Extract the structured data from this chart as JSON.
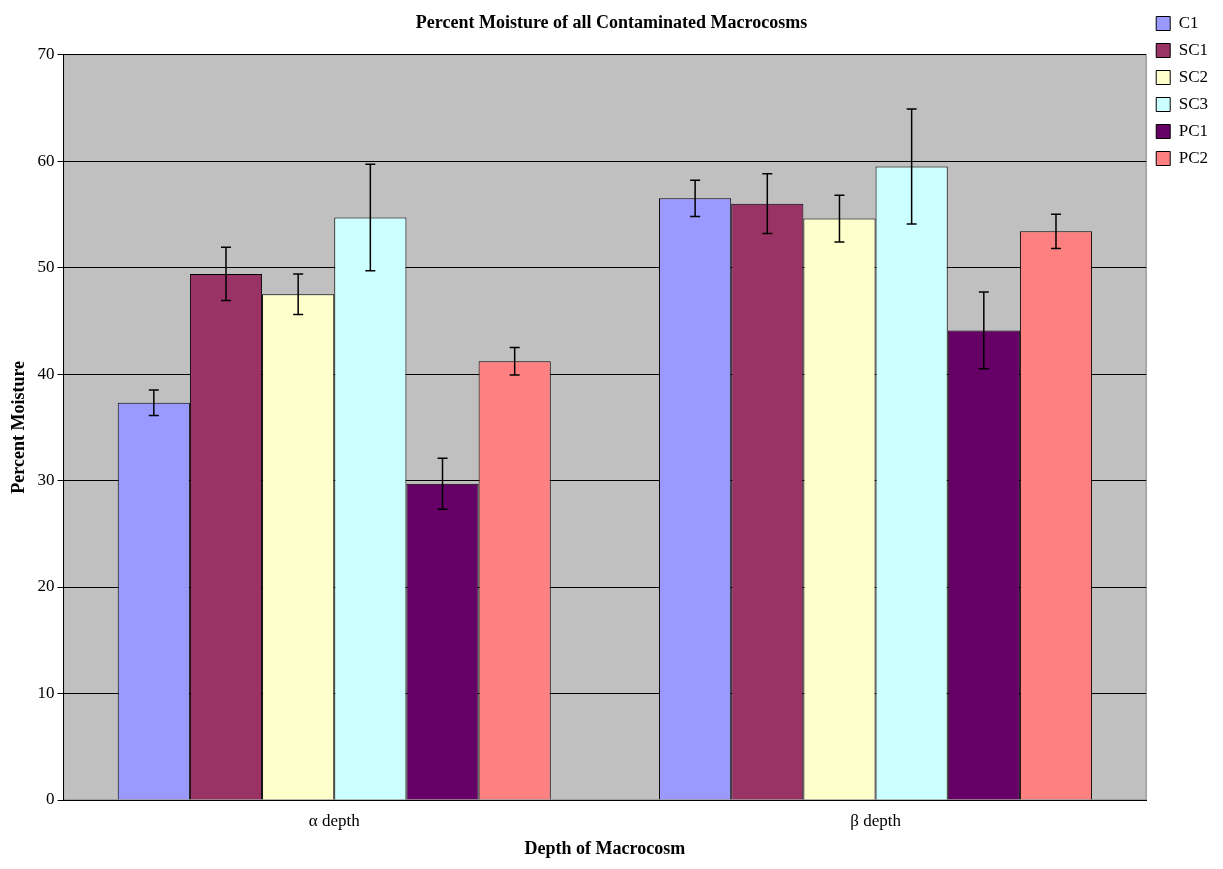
{
  "chart_data": {
    "type": "bar",
    "title": "Percent Moisture of all Contaminated Macrocosms",
    "xlabel": "Depth of Macrocosm",
    "ylabel": "Percent Moisture",
    "categories": [
      "α depth",
      "β depth"
    ],
    "series": [
      {
        "name": "C1",
        "color": "#9999ff",
        "values": [
          37.3,
          56.5
        ],
        "errors": [
          1.2,
          1.7
        ]
      },
      {
        "name": "SC1",
        "color": "#993366",
        "values": [
          49.4,
          56.0
        ],
        "errors": [
          2.5,
          2.8
        ]
      },
      {
        "name": "SC2",
        "color": "#ffffcc",
        "values": [
          47.5,
          54.6
        ],
        "errors": [
          1.9,
          2.2
        ]
      },
      {
        "name": "SC3",
        "color": "#ccffff",
        "values": [
          54.7,
          59.5
        ],
        "errors": [
          5.0,
          5.4
        ]
      },
      {
        "name": "PC1",
        "color": "#660066",
        "values": [
          29.7,
          44.1
        ],
        "errors": [
          2.4,
          3.6
        ]
      },
      {
        "name": "PC2",
        "color": "#ff8080",
        "values": [
          41.2,
          53.4
        ],
        "errors": [
          1.3,
          1.6
        ]
      }
    ],
    "ylim": [
      0,
      70
    ],
    "yticks": [
      0,
      10,
      20,
      30,
      40,
      50,
      60,
      70
    ],
    "grid": "y",
    "legend": "top right"
  }
}
